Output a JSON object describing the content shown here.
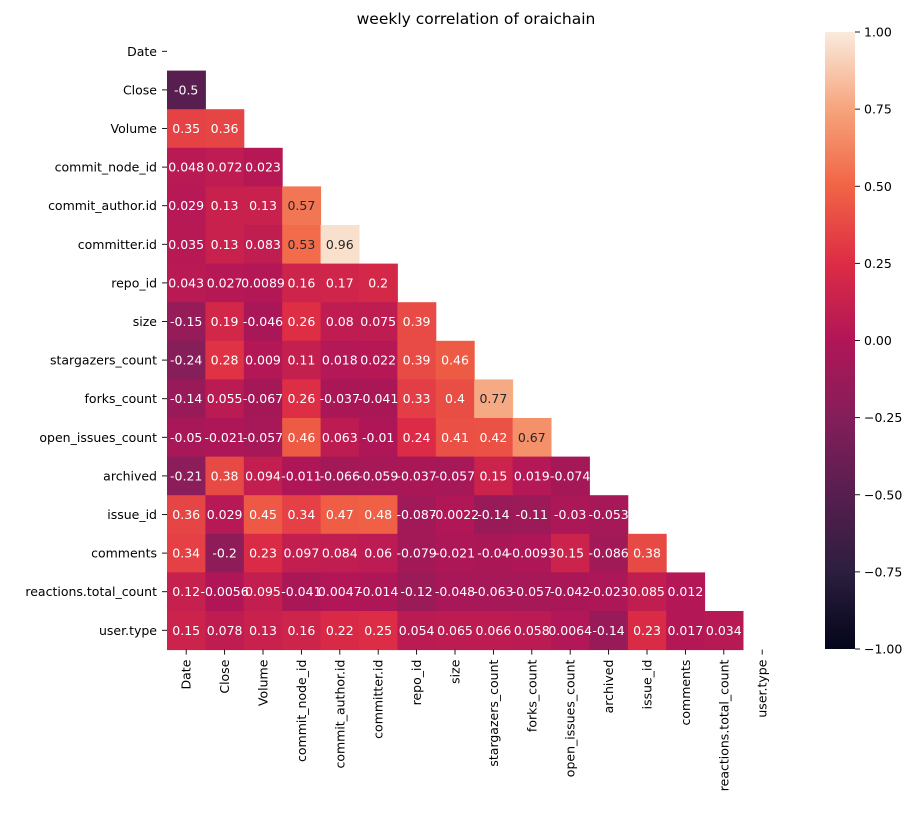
{
  "chart_data": {
    "type": "heatmap",
    "title": "weekly correlation of oraichain",
    "xlabel": "",
    "ylabel": "",
    "variables": [
      "Date",
      "Close",
      "Volume",
      "commit_node_id",
      "commit_author.id",
      "committer.id",
      "repo_id",
      "size",
      "stargazers_count",
      "forks_count",
      "open_issues_count",
      "archived",
      "issue_id",
      "comments",
      "reactions.total_count",
      "user.type"
    ],
    "mask": "upper-triangle-including-diagonal",
    "values": [
      [
        null,
        null,
        null,
        null,
        null,
        null,
        null,
        null,
        null,
        null,
        null,
        null,
        null,
        null,
        null,
        null
      ],
      [
        -0.5,
        null,
        null,
        null,
        null,
        null,
        null,
        null,
        null,
        null,
        null,
        null,
        null,
        null,
        null,
        null
      ],
      [
        0.35,
        0.36,
        null,
        null,
        null,
        null,
        null,
        null,
        null,
        null,
        null,
        null,
        null,
        null,
        null,
        null
      ],
      [
        0.048,
        0.072,
        0.023,
        null,
        null,
        null,
        null,
        null,
        null,
        null,
        null,
        null,
        null,
        null,
        null,
        null
      ],
      [
        0.029,
        0.13,
        0.13,
        0.57,
        null,
        null,
        null,
        null,
        null,
        null,
        null,
        null,
        null,
        null,
        null,
        null
      ],
      [
        0.035,
        0.13,
        0.083,
        0.53,
        0.96,
        null,
        null,
        null,
        null,
        null,
        null,
        null,
        null,
        null,
        null,
        null
      ],
      [
        0.043,
        0.027,
        0.0089,
        0.16,
        0.17,
        0.2,
        null,
        null,
        null,
        null,
        null,
        null,
        null,
        null,
        null,
        null
      ],
      [
        -0.15,
        0.19,
        -0.046,
        0.26,
        0.08,
        0.075,
        0.39,
        null,
        null,
        null,
        null,
        null,
        null,
        null,
        null,
        null
      ],
      [
        -0.24,
        0.28,
        0.009,
        0.11,
        0.018,
        0.022,
        0.39,
        0.46,
        null,
        null,
        null,
        null,
        null,
        null,
        null,
        null
      ],
      [
        -0.14,
        0.055,
        -0.067,
        0.26,
        -0.037,
        -0.041,
        0.33,
        0.4,
        0.77,
        null,
        null,
        null,
        null,
        null,
        null,
        null
      ],
      [
        -0.05,
        -0.021,
        -0.057,
        0.46,
        0.063,
        -0.01,
        0.24,
        0.41,
        0.42,
        0.67,
        null,
        null,
        null,
        null,
        null,
        null
      ],
      [
        -0.21,
        0.38,
        0.094,
        -0.011,
        -0.066,
        -0.059,
        -0.037,
        -0.057,
        0.15,
        0.019,
        -0.074,
        null,
        null,
        null,
        null,
        null
      ],
      [
        0.36,
        0.029,
        0.45,
        0.34,
        0.47,
        0.48,
        -0.087,
        -0.0022,
        -0.14,
        -0.11,
        -0.03,
        -0.053,
        null,
        null,
        null,
        null
      ],
      [
        0.34,
        -0.2,
        0.23,
        0.097,
        0.084,
        0.06,
        -0.079,
        -0.021,
        -0.04,
        -0.0093,
        0.15,
        -0.086,
        0.38,
        null,
        null,
        null
      ],
      [
        0.12,
        -0.0056,
        0.095,
        -0.041,
        0.0047,
        -0.014,
        -0.12,
        -0.048,
        -0.063,
        -0.057,
        -0.042,
        -0.023,
        0.085,
        0.012,
        null,
        null
      ],
      [
        0.15,
        0.078,
        0.13,
        0.16,
        0.22,
        0.25,
        0.054,
        0.065,
        0.066,
        0.058,
        0.0064,
        -0.14,
        0.23,
        0.017,
        0.034,
        null
      ]
    ],
    "colorbar": {
      "range": [
        -1.0,
        1.0
      ],
      "ticks": [
        "1.00",
        "0.75",
        "0.50",
        "0.25",
        "0.00",
        "−0.25",
        "−0.50",
        "−0.75",
        "−1.00"
      ],
      "colormap": "rocket"
    }
  }
}
